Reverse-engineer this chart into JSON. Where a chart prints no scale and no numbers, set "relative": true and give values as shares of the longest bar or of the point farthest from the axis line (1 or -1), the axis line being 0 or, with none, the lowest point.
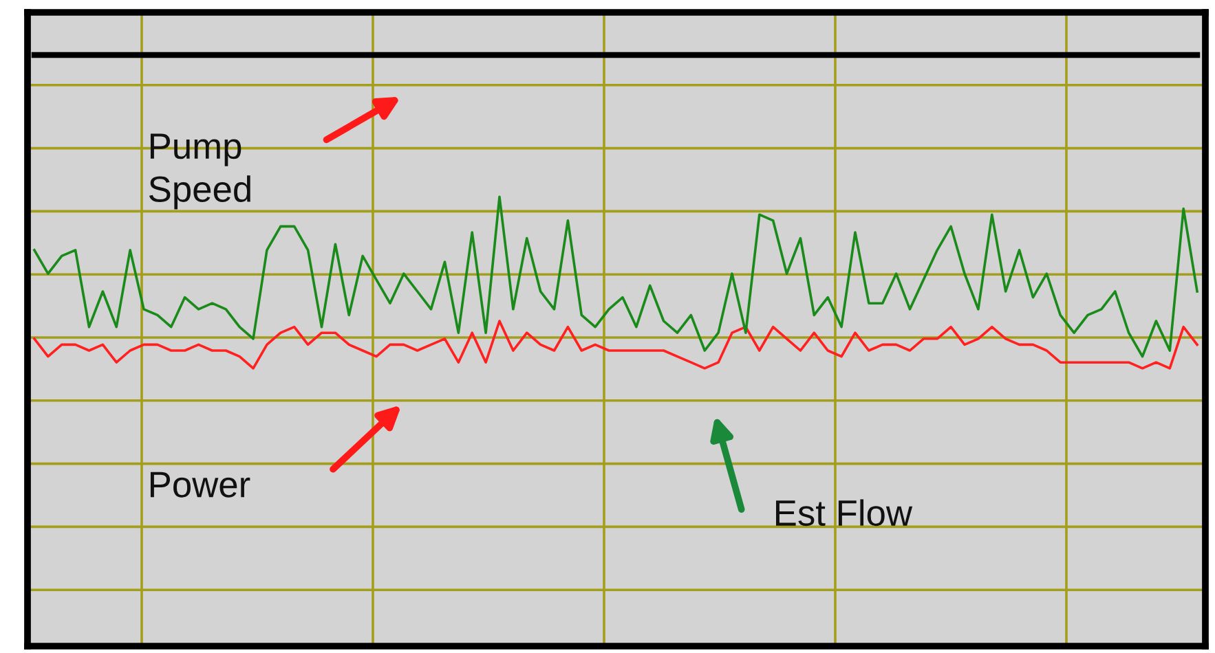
{
  "chart_data": {
    "type": "line",
    "relative": true,
    "grid": true,
    "marker": "none",
    "line_style": "solid",
    "categories": [
      null,
      null,
      null,
      null,
      null,
      null,
      null,
      null,
      null,
      null,
      null,
      null,
      null,
      null,
      null,
      null,
      null,
      null,
      null,
      null,
      null,
      null,
      null,
      null,
      null,
      null,
      null,
      null,
      null,
      null,
      null,
      null,
      null,
      null,
      null,
      null,
      null,
      null,
      null,
      null,
      null,
      null,
      null,
      null,
      null,
      null,
      null,
      null,
      null,
      null,
      null,
      null,
      null,
      null,
      null,
      null,
      null,
      null,
      null,
      null,
      null,
      null,
      null,
      null,
      null,
      null,
      null,
      null,
      null,
      null,
      null,
      null,
      null,
      null,
      null,
      null,
      null,
      null,
      null,
      null,
      null,
      null,
      null,
      null,
      null,
      null
    ],
    "series": [
      {
        "color": "#000000",
        "values": [
          1.0,
          1.0,
          1.0,
          1.0,
          1.0,
          1.0,
          1.0,
          1.0,
          1.0,
          1.0,
          1.0,
          1.0,
          1.0,
          1.0,
          1.0,
          1.0,
          1.0,
          1.0,
          1.0,
          1.0,
          1.0,
          1.0,
          1.0,
          1.0,
          1.0,
          1.0,
          1.0,
          1.0,
          1.0,
          1.0,
          1.0,
          1.0,
          1.0,
          1.0,
          1.0,
          1.0,
          1.0,
          1.0,
          1.0,
          1.0,
          1.0,
          1.0,
          1.0,
          1.0,
          1.0,
          1.0,
          1.0,
          1.0,
          1.0,
          1.0,
          1.0,
          1.0,
          1.0,
          1.0,
          1.0,
          1.0,
          1.0,
          1.0,
          1.0,
          1.0,
          1.0,
          1.0,
          1.0,
          1.0,
          1.0,
          1.0,
          1.0,
          1.0,
          1.0,
          1.0,
          1.0,
          1.0,
          1.0,
          1.0,
          1.0,
          1.0,
          1.0,
          1.0,
          1.0,
          1.0,
          1.0,
          1.0,
          1.0,
          1.0,
          1.0,
          1.0
        ]
      },
      {
        "color": "#ff2020",
        "values": [
          0.52,
          0.49,
          0.51,
          0.51,
          0.5,
          0.51,
          0.48,
          0.5,
          0.51,
          0.51,
          0.5,
          0.5,
          0.51,
          0.5,
          0.5,
          0.49,
          0.47,
          0.51,
          0.53,
          0.54,
          0.51,
          0.53,
          0.53,
          0.51,
          0.5,
          0.49,
          0.51,
          0.51,
          0.5,
          0.51,
          0.52,
          0.48,
          0.53,
          0.48,
          0.55,
          0.5,
          0.53,
          0.51,
          0.5,
          0.54,
          0.5,
          0.51,
          0.5,
          0.5,
          0.5,
          0.5,
          0.5,
          0.49,
          0.48,
          0.47,
          0.48,
          0.53,
          0.54,
          0.5,
          0.54,
          0.52,
          0.5,
          0.53,
          0.5,
          0.49,
          0.53,
          0.5,
          0.51,
          0.51,
          0.5,
          0.52,
          0.52,
          0.54,
          0.51,
          0.52,
          0.54,
          0.52,
          0.51,
          0.51,
          0.5,
          0.48,
          0.48,
          0.48,
          0.48,
          0.48,
          0.48,
          0.47,
          0.48,
          0.47,
          0.54,
          0.51
        ]
      },
      {
        "color": "#1a8a1a",
        "values": [
          0.67,
          0.63,
          0.66,
          0.67,
          0.54,
          0.6,
          0.54,
          0.67,
          0.57,
          0.56,
          0.54,
          0.59,
          0.57,
          0.58,
          0.57,
          0.54,
          0.52,
          0.67,
          0.71,
          0.71,
          0.67,
          0.54,
          0.68,
          0.56,
          0.66,
          0.62,
          0.58,
          0.63,
          0.6,
          0.57,
          0.65,
          0.53,
          0.7,
          0.53,
          0.76,
          0.57,
          0.69,
          0.6,
          0.57,
          0.72,
          0.56,
          0.54,
          0.57,
          0.59,
          0.54,
          0.61,
          0.55,
          0.53,
          0.56,
          0.5,
          0.53,
          0.63,
          0.53,
          0.73,
          0.72,
          0.63,
          0.69,
          0.56,
          0.59,
          0.54,
          0.7,
          0.58,
          0.58,
          0.63,
          0.57,
          0.62,
          0.67,
          0.71,
          0.63,
          0.57,
          0.73,
          0.6,
          0.67,
          0.59,
          0.63,
          0.56,
          0.53,
          0.56,
          0.57,
          0.6,
          0.53,
          0.49,
          0.55,
          0.5,
          0.74,
          0.6
        ]
      }
    ],
    "annotations": [
      "Pump\nSpeed",
      "Power",
      "Est Flow"
    ]
  }
}
